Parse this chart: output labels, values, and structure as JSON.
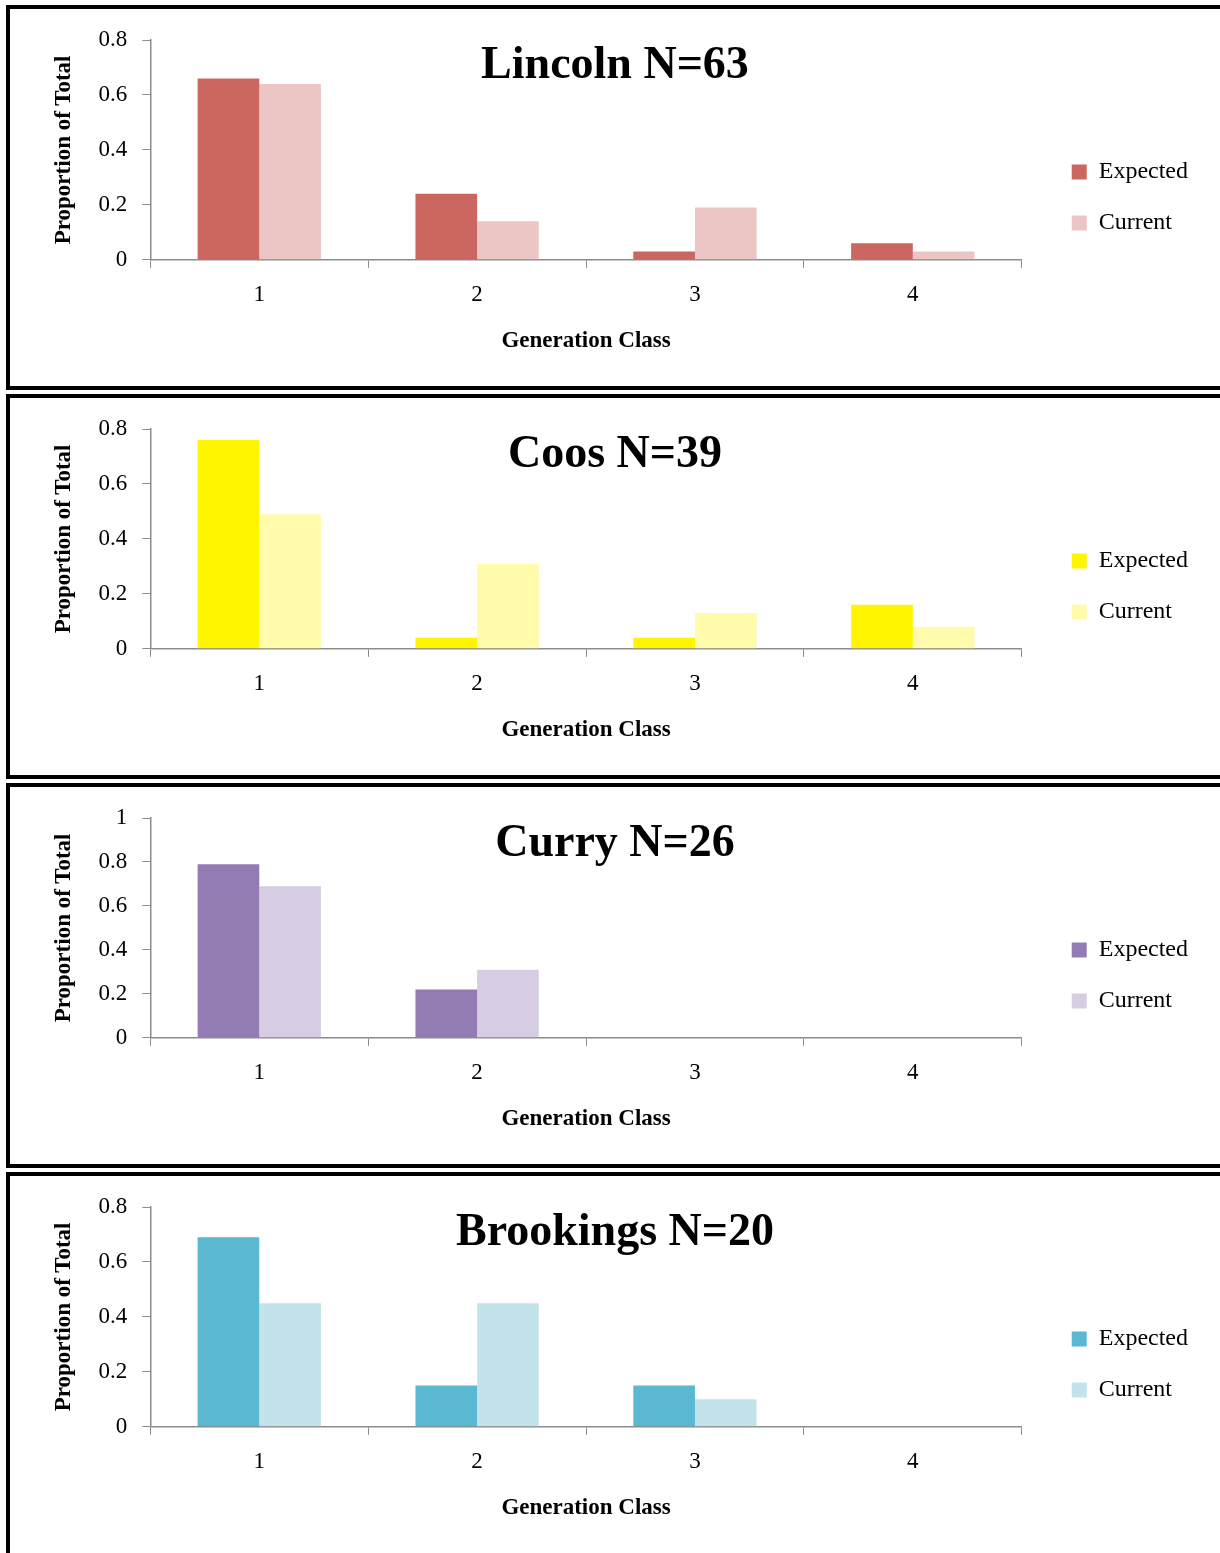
{
  "chart_data": [
    {
      "type": "bar",
      "title": "Lincoln N=63",
      "xlabel": "Generation Class",
      "ylabel": "Proportion of Total",
      "categories": [
        "1",
        "2",
        "3",
        "4"
      ],
      "series": [
        {
          "name": "Expected",
          "color": "#cc6660",
          "values": [
            0.66,
            0.24,
            0.03,
            0.06
          ]
        },
        {
          "name": "Current",
          "color": "#ecc6c5",
          "values": [
            0.64,
            0.14,
            0.19,
            0.03
          ]
        }
      ],
      "ylim": [
        0,
        0.8
      ],
      "yticks": [
        0,
        0.2,
        0.4,
        0.6,
        0.8
      ],
      "legend": "right",
      "grid": false
    },
    {
      "type": "bar",
      "title": "Coos N=39",
      "xlabel": "Generation Class",
      "ylabel": "Proportion of Total",
      "categories": [
        "1",
        "2",
        "3",
        "4"
      ],
      "series": [
        {
          "name": "Expected",
          "color": "#fff500",
          "values": [
            0.76,
            0.04,
            0.04,
            0.16
          ]
        },
        {
          "name": "Current",
          "color": "#fffbaa",
          "values": [
            0.49,
            0.31,
            0.13,
            0.08
          ]
        }
      ],
      "ylim": [
        0,
        0.8
      ],
      "yticks": [
        0,
        0.2,
        0.4,
        0.6,
        0.8
      ],
      "legend": "right",
      "grid": false
    },
    {
      "type": "bar",
      "title": "Curry N=26",
      "xlabel": "Generation Class",
      "ylabel": "Proportion of Total",
      "categories": [
        "1",
        "2",
        "3",
        "4"
      ],
      "series": [
        {
          "name": "Expected",
          "color": "#937cb3",
          "values": [
            0.79,
            0.22,
            0,
            0
          ]
        },
        {
          "name": "Current",
          "color": "#d6cde2",
          "values": [
            0.69,
            0.31,
            0,
            0
          ]
        }
      ],
      "ylim": [
        0,
        1
      ],
      "yticks": [
        0,
        0.2,
        0.4,
        0.6,
        0.8,
        1
      ],
      "legend": "right",
      "grid": false
    },
    {
      "type": "bar",
      "title": "Brookings N=20",
      "xlabel": "Generation Class",
      "ylabel": "Proportion of Total",
      "categories": [
        "1",
        "2",
        "3",
        "4"
      ],
      "series": [
        {
          "name": "Expected",
          "color": "#5bb8d2",
          "values": [
            0.69,
            0.15,
            0.15,
            0
          ]
        },
        {
          "name": "Current",
          "color": "#c3e3eb",
          "values": [
            0.45,
            0.45,
            0.1,
            0
          ]
        }
      ],
      "ylim": [
        0,
        0.8
      ],
      "yticks": [
        0,
        0.2,
        0.4,
        0.6,
        0.8
      ],
      "legend": "right",
      "grid": false
    }
  ]
}
